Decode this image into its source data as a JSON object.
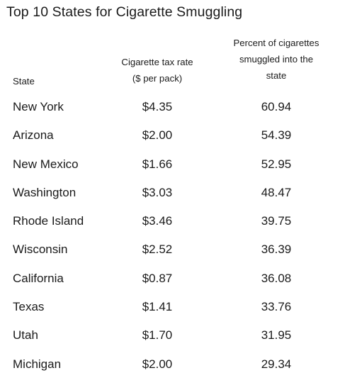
{
  "chart_data": {
    "type": "table",
    "title": "Top 10 States for Cigarette Smuggling",
    "columns": [
      {
        "key": "state",
        "lines": [
          "State"
        ]
      },
      {
        "key": "tax",
        "lines": [
          "Cigarette tax rate",
          "($ per pack)"
        ]
      },
      {
        "key": "pct",
        "lines": [
          "Percent of cigarettes",
          "smuggled into the",
          "state"
        ]
      }
    ],
    "rows": [
      {
        "state": "New York",
        "tax": "$4.35",
        "pct": "60.94"
      },
      {
        "state": "Arizona",
        "tax": "$2.00",
        "pct": "54.39"
      },
      {
        "state": "New Mexico",
        "tax": "$1.66",
        "pct": "52.95"
      },
      {
        "state": "Washington",
        "tax": "$3.03",
        "pct": "48.47"
      },
      {
        "state": "Rhode Island",
        "tax": "$3.46",
        "pct": "39.75"
      },
      {
        "state": "Wisconsin",
        "tax": "$2.52",
        "pct": "36.39"
      },
      {
        "state": "California",
        "tax": "$0.87",
        "pct": "36.08"
      },
      {
        "state": "Texas",
        "tax": "$1.41",
        "pct": "33.76"
      },
      {
        "state": "Utah",
        "tax": "$1.70",
        "pct": "31.95"
      },
      {
        "state": "Michigan",
        "tax": "$2.00",
        "pct": "29.34"
      }
    ]
  }
}
